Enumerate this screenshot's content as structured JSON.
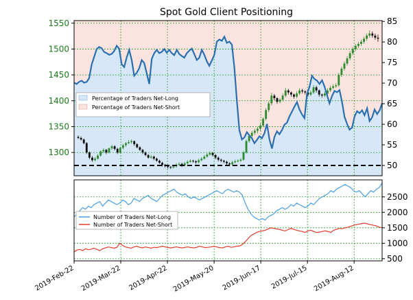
{
  "chart_data": {
    "title": "Spot Gold Client Positioning",
    "colors": {
      "price_up": "#2e8b2e",
      "price_down": "#111111",
      "net_long_line": "#2a6fb0",
      "net_long_fill": "#d6e8f7",
      "net_short_fill": "#fbe3e0",
      "traders_long": "#4a9fe0",
      "traders_short": "#e03a2a",
      "baseline": "#000000",
      "grid": "#2a9a2a"
    },
    "x_ticks": [
      "2019-Feb-22",
      "2019-Mar-22",
      "2019-Apr-22",
      "2019-May-20",
      "2019-Jun-17",
      "2019-Jul-15",
      "2019-Aug-12"
    ],
    "upper_panel": {
      "type": "candlestick",
      "price_axis": {
        "ticks": [
          1300,
          1350,
          1400,
          1450,
          1500,
          1550
        ],
        "range": [
          1255,
          1555
        ]
      },
      "pct_axis": {
        "ticks": [
          50,
          55,
          60,
          65,
          70,
          75,
          80,
          85
        ],
        "range": [
          47.5,
          85.2
        ]
      },
      "baseline_pct": 50,
      "legend": [
        "Percentage of Traders Net-Long",
        "Percentage of Traders Net-Short"
      ],
      "price_closes": [
        1328,
        1326,
        1318,
        1300,
        1290,
        1285,
        1288,
        1294,
        1302,
        1305,
        1300,
        1308,
        1312,
        1307,
        1300,
        1309,
        1314,
        1318,
        1320,
        1322,
        1316,
        1310,
        1305,
        1300,
        1295,
        1290,
        1292,
        1288,
        1284,
        1280,
        1276,
        1274,
        1272,
        1271,
        1273,
        1276,
        1278,
        1275,
        1279,
        1282,
        1284,
        1283,
        1281,
        1285,
        1288,
        1292,
        1296,
        1299,
        1295,
        1290,
        1286,
        1284,
        1282,
        1279,
        1277,
        1281,
        1283,
        1284,
        1286,
        1300,
        1322,
        1332,
        1338,
        1342,
        1346,
        1352,
        1365,
        1382,
        1395,
        1410,
        1405,
        1398,
        1402,
        1410,
        1420,
        1416,
        1412,
        1408,
        1414,
        1420,
        1418,
        1416,
        1412,
        1416,
        1426,
        1420,
        1412,
        1410,
        1414,
        1420,
        1425,
        1428,
        1430,
        1450,
        1462,
        1472,
        1482,
        1492,
        1500,
        1506,
        1510,
        1514,
        1520,
        1526,
        1530,
        1526,
        1522,
        1520
      ],
      "pct_net_long": [
        70.1,
        69.8,
        70.3,
        70.6,
        70.1,
        70.3,
        71.2,
        74.5,
        76.4,
        78.3,
        78.8,
        78.5,
        77.6,
        77.3,
        76.9,
        77.1,
        77.8,
        79.1,
        78.4,
        74.6,
        73.9,
        76.3,
        78.1,
        75.6,
        71.8,
        72.5,
        73.6,
        75.6,
        74.9,
        72.4,
        69.8,
        75.9,
        77.3,
        78.1,
        77.3,
        77.6,
        78.3,
        77.4,
        78.1,
        77.3,
        76.8,
        78.1,
        77.1,
        76.6,
        76.2,
        77.3,
        77.9,
        78.4,
        77.1,
        75.6,
        76.2,
        78.1,
        76.9,
        75.3,
        74.2,
        75.5,
        76.9,
        80.1,
        80.6,
        80.3,
        81.3,
        79.8,
        80.1,
        79.4,
        73.8,
        65.7,
        58.6,
        56.3,
        56.8,
        58.1,
        57.3,
        56.6,
        55.4,
        56.2,
        57.1,
        56.6,
        57.8,
        60.1,
        56.4,
        54.1,
        56.9,
        58.3,
        57.6,
        58.6,
        59.9,
        60.4,
        61.9,
        63.1,
        64.3,
        65.4,
        63.6,
        62.4,
        61.5,
        67.4,
        69.1,
        71.8,
        71.0,
        70.6,
        69.8,
        70.7,
        69.2,
        67.1,
        65.1,
        66.9,
        68.1,
        67.8,
        68.3,
        65.4,
        61.8,
        60.1,
        58.7,
        59.2,
        61.9,
        63.2,
        62.7,
        63.4,
        62.2,
        63.9,
        60.8,
        61.7,
        63.6,
        62.5,
        63.4,
        65.1
      ],
      "candles": [
        [
          1330,
          1333,
          1326,
          1328
        ],
        [
          1328,
          1331,
          1323,
          1325
        ],
        [
          1325,
          1327,
          1316,
          1318
        ],
        [
          1318,
          1320,
          1297,
          1300
        ],
        [
          1300,
          1302,
          1287,
          1290
        ],
        [
          1290,
          1293,
          1282,
          1285
        ],
        [
          1285,
          1291,
          1283,
          1288
        ],
        [
          1288,
          1297,
          1286,
          1294
        ],
        [
          1294,
          1304,
          1292,
          1302
        ],
        [
          1302,
          1308,
          1299,
          1305
        ],
        [
          1305,
          1307,
          1297,
          1300
        ],
        [
          1300,
          1310,
          1298,
          1308
        ],
        [
          1308,
          1315,
          1305,
          1312
        ],
        [
          1312,
          1314,
          1304,
          1307
        ],
        [
          1307,
          1309,
          1297,
          1300
        ],
        [
          1300,
          1311,
          1298,
          1309
        ],
        [
          1309,
          1317,
          1306,
          1314
        ],
        [
          1314,
          1320,
          1311,
          1318
        ],
        [
          1318,
          1324,
          1316,
          1320
        ],
        [
          1320,
          1325,
          1317,
          1322
        ],
        [
          1322,
          1323,
          1313,
          1316
        ],
        [
          1316,
          1318,
          1308,
          1310
        ],
        [
          1310,
          1312,
          1303,
          1305
        ],
        [
          1305,
          1307,
          1297,
          1300
        ],
        [
          1300,
          1302,
          1293,
          1295
        ],
        [
          1295,
          1297,
          1288,
          1290
        ],
        [
          1290,
          1295,
          1288,
          1292
        ],
        [
          1292,
          1294,
          1285,
          1288
        ],
        [
          1288,
          1290,
          1282,
          1284
        ],
        [
          1284,
          1286,
          1278,
          1280
        ],
        [
          1280,
          1282,
          1273,
          1276
        ],
        [
          1276,
          1278,
          1271,
          1274
        ],
        [
          1274,
          1276,
          1269,
          1272
        ],
        [
          1272,
          1274,
          1268,
          1271
        ],
        [
          1271,
          1276,
          1269,
          1273
        ],
        [
          1273,
          1279,
          1271,
          1276
        ],
        [
          1276,
          1281,
          1274,
          1278
        ],
        [
          1278,
          1280,
          1272,
          1275
        ],
        [
          1275,
          1282,
          1273,
          1279
        ],
        [
          1279,
          1285,
          1277,
          1282
        ],
        [
          1282,
          1287,
          1280,
          1284
        ],
        [
          1284,
          1286,
          1280,
          1283
        ],
        [
          1283,
          1285,
          1278,
          1281
        ],
        [
          1281,
          1288,
          1279,
          1285
        ],
        [
          1285,
          1291,
          1283,
          1288
        ],
        [
          1288,
          1295,
          1286,
          1292
        ],
        [
          1292,
          1299,
          1290,
          1296
        ],
        [
          1296,
          1302,
          1294,
          1299
        ],
        [
          1299,
          1301,
          1292,
          1295
        ],
        [
          1295,
          1297,
          1287,
          1290
        ],
        [
          1290,
          1292,
          1283,
          1286
        ],
        [
          1286,
          1288,
          1281,
          1284
        ],
        [
          1284,
          1286,
          1279,
          1282
        ],
        [
          1282,
          1284,
          1276,
          1279
        ],
        [
          1279,
          1281,
          1274,
          1277
        ],
        [
          1277,
          1284,
          1275,
          1281
        ],
        [
          1281,
          1286,
          1279,
          1283
        ],
        [
          1283,
          1287,
          1281,
          1284
        ],
        [
          1284,
          1289,
          1282,
          1286
        ],
        [
          1286,
          1303,
          1284,
          1300
        ],
        [
          1300,
          1325,
          1298,
          1322
        ],
        [
          1322,
          1336,
          1319,
          1332
        ],
        [
          1332,
          1342,
          1328,
          1338
        ],
        [
          1338,
          1346,
          1334,
          1342
        ],
        [
          1342,
          1350,
          1337,
          1346
        ],
        [
          1346,
          1356,
          1342,
          1352
        ],
        [
          1352,
          1368,
          1349,
          1365
        ],
        [
          1365,
          1386,
          1362,
          1382
        ],
        [
          1382,
          1399,
          1378,
          1395
        ],
        [
          1395,
          1415,
          1391,
          1410
        ],
        [
          1410,
          1413,
          1401,
          1405
        ],
        [
          1405,
          1407,
          1394,
          1398
        ],
        [
          1398,
          1405,
          1395,
          1402
        ],
        [
          1402,
          1414,
          1399,
          1410
        ],
        [
          1410,
          1425,
          1407,
          1420
        ],
        [
          1420,
          1423,
          1412,
          1416
        ],
        [
          1416,
          1418,
          1408,
          1412
        ],
        [
          1412,
          1414,
          1404,
          1408
        ],
        [
          1408,
          1418,
          1405,
          1414
        ],
        [
          1414,
          1424,
          1411,
          1420
        ],
        [
          1420,
          1423,
          1414,
          1418
        ],
        [
          1418,
          1420,
          1412,
          1416
        ],
        [
          1416,
          1418,
          1408,
          1412
        ],
        [
          1412,
          1420,
          1409,
          1416
        ],
        [
          1416,
          1430,
          1413,
          1426
        ],
        [
          1426,
          1429,
          1416,
          1420
        ],
        [
          1420,
          1422,
          1408,
          1412
        ],
        [
          1412,
          1414,
          1406,
          1410
        ],
        [
          1410,
          1418,
          1407,
          1414
        ],
        [
          1414,
          1424,
          1411,
          1420
        ],
        [
          1420,
          1429,
          1417,
          1425
        ],
        [
          1425,
          1432,
          1422,
          1428
        ],
        [
          1428,
          1434,
          1425,
          1430
        ],
        [
          1430,
          1454,
          1427,
          1450
        ],
        [
          1450,
          1466,
          1446,
          1462
        ],
        [
          1462,
          1476,
          1458,
          1472
        ],
        [
          1472,
          1486,
          1468,
          1482
        ],
        [
          1482,
          1496,
          1478,
          1492
        ],
        [
          1492,
          1504,
          1488,
          1500
        ],
        [
          1500,
          1510,
          1496,
          1506
        ],
        [
          1506,
          1514,
          1502,
          1510
        ],
        [
          1510,
          1518,
          1506,
          1514
        ],
        [
          1514,
          1524,
          1510,
          1520
        ],
        [
          1520,
          1530,
          1516,
          1526
        ],
        [
          1526,
          1536,
          1522,
          1530
        ],
        [
          1530,
          1534,
          1522,
          1526
        ],
        [
          1526,
          1530,
          1518,
          1522
        ],
        [
          1522,
          1528,
          1514,
          1520
        ]
      ]
    },
    "lower_panel": {
      "type": "line",
      "axis": {
        "ticks": [
          500,
          1000,
          1500,
          2000,
          2500
        ],
        "range": [
          430,
          3050
        ]
      },
      "legend": [
        "Number of Traders Net-Long",
        "Number of Traders Net-Short"
      ],
      "series": [
        {
          "name": "Number of Traders Net-Long",
          "values": [
            1850,
            1950,
            2050,
            2150,
            2100,
            2200,
            2150,
            2250,
            2300,
            2350,
            2200,
            2300,
            2400,
            2350,
            2300,
            2250,
            2300,
            2400,
            2350,
            2250,
            2300,
            2450,
            2400,
            2350,
            2450,
            2500,
            2550,
            2450,
            2400,
            2350,
            2450,
            2550,
            2600,
            2650,
            2700,
            2750,
            2650,
            2600,
            2550,
            2600,
            2500,
            2450,
            2500,
            2450,
            2400,
            2450,
            2500,
            2550,
            2600,
            2650,
            2700,
            2650,
            2600,
            2700,
            2750,
            2700,
            2650,
            2700,
            2650,
            2550,
            2300,
            2100,
            1950,
            1850,
            1800,
            1750,
            1800,
            1750,
            1850,
            1900,
            1950,
            2050,
            2100,
            2150,
            2100,
            2150,
            2250,
            2200,
            2300,
            2250,
            2200,
            2150,
            2200,
            2300,
            2250,
            2350,
            2450,
            2500,
            2550,
            2600,
            2700,
            2650,
            2750,
            2800,
            2850,
            2900,
            2850,
            2800,
            2700,
            2650,
            2700,
            2600,
            2500,
            2600,
            2700,
            2650,
            2750,
            2800,
            2950
          ]
        },
        {
          "name": "Number of Traders Net-Short",
          "values": [
            720,
            780,
            800,
            760,
            820,
            790,
            810,
            840,
            800,
            760,
            820,
            850,
            880,
            860,
            840,
            870,
            1000,
            930,
            880,
            860,
            840,
            880,
            900,
            870,
            850,
            880,
            860,
            840,
            870,
            860,
            880,
            900,
            880,
            860,
            850,
            870,
            880,
            860,
            850,
            870,
            880,
            860,
            850,
            870,
            900,
            880,
            860,
            870,
            880,
            900,
            880,
            860,
            850,
            880,
            900,
            870,
            880,
            900,
            910,
            960,
            1050,
            1150,
            1250,
            1300,
            1350,
            1380,
            1400,
            1420,
            1460,
            1500,
            1480,
            1460,
            1450,
            1420,
            1400,
            1440,
            1480,
            1450,
            1420,
            1400,
            1380,
            1350,
            1400,
            1420,
            1380,
            1350,
            1360,
            1380,
            1400,
            1380,
            1350,
            1420,
            1450,
            1480,
            1470,
            1500,
            1520,
            1550,
            1580,
            1600,
            1620,
            1640,
            1650,
            1620,
            1600,
            1580,
            1560,
            1520,
            1500
          ]
        }
      ]
    }
  }
}
